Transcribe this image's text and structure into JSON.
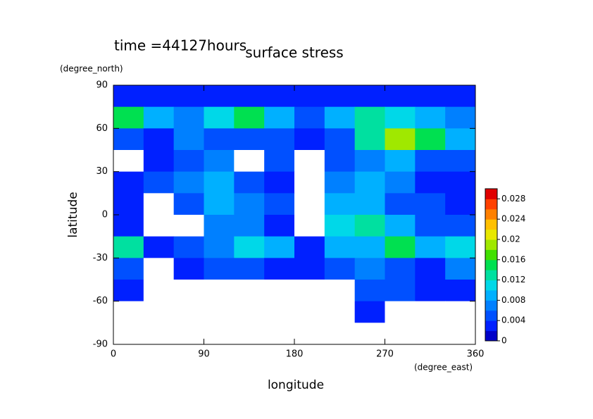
{
  "chart_data": {
    "type": "heatmap",
    "title": "surface stress",
    "subtitle": "time =44127hours",
    "x_label": "longitude",
    "y_label": "latitude",
    "x_unit": "(degree_east)",
    "y_unit": "(degree_north)",
    "xlim": [
      0,
      360
    ],
    "ylim": [
      -90,
      90
    ],
    "xticks": [
      0,
      90,
      180,
      270,
      360
    ],
    "yticks": [
      -90,
      -60,
      -30,
      0,
      30,
      60,
      90
    ],
    "x": [
      15,
      45,
      75,
      105,
      135,
      165,
      195,
      225,
      255,
      285,
      315,
      345
    ],
    "y": [
      82.5,
      67.5,
      52.5,
      37.5,
      22.5,
      7.5,
      -7.5,
      -22.5,
      -37.5,
      -52.5,
      -67.5,
      -82.5
    ],
    "z": [
      [
        0.002,
        0.002,
        0.002,
        0.002,
        0.002,
        0.002,
        0.002,
        0.003,
        0.003,
        0.003,
        0.003,
        0.003
      ],
      [
        0.014,
        0.008,
        0.006,
        0.01,
        0.014,
        0.008,
        0.005,
        0.008,
        0.012,
        0.01,
        0.008,
        0.006
      ],
      [
        0.004,
        0.003,
        0.006,
        0.005,
        0.004,
        0.004,
        0.003,
        0.005,
        0.012,
        0.018,
        0.014,
        0.008
      ],
      [
        0,
        0.003,
        0.004,
        0.006,
        0,
        0.004,
        0,
        0.004,
        0.006,
        0.008,
        0.004,
        0.004
      ],
      [
        0.003,
        0.004,
        0.006,
        0.008,
        0.005,
        0.003,
        0,
        0.006,
        0.008,
        0.006,
        0.003,
        0.003
      ],
      [
        0.003,
        0,
        0.004,
        0.008,
        0.006,
        0.004,
        0,
        0.008,
        0.008,
        0.005,
        0.004,
        0.003
      ],
      [
        0.003,
        0,
        0,
        0.006,
        0.006,
        0.003,
        0,
        0.01,
        0.012,
        0.008,
        0.005,
        0.004
      ],
      [
        0.012,
        0.003,
        0.004,
        0.006,
        0.01,
        0.008,
        0.003,
        0.008,
        0.008,
        0.014,
        0.008,
        0.01
      ],
      [
        0.004,
        0,
        0.003,
        0.004,
        0.004,
        0.003,
        0.003,
        0.005,
        0.006,
        0.004,
        0.003,
        0.006
      ],
      [
        0.003,
        0,
        0,
        0,
        0,
        0,
        0,
        0,
        0.004,
        0.004,
        0.003,
        0.003
      ],
      [
        0,
        0,
        0,
        0,
        0,
        0,
        0,
        0,
        0.003,
        0,
        0,
        0
      ],
      [
        0,
        0,
        0,
        0,
        0,
        0,
        0,
        0,
        0,
        0,
        0,
        0
      ]
    ],
    "clim": [
      0,
      0.03
    ],
    "cticks": [
      0,
      0.004,
      0.008,
      0.012,
      0.016,
      0.02,
      0.024,
      0.028
    ],
    "colors": [
      "#0000c8",
      "#0020ff",
      "#0050ff",
      "#0080ff",
      "#00b0ff",
      "#00d8e8",
      "#00e0a0",
      "#00e050",
      "#40e000",
      "#a0e800",
      "#e8e800",
      "#ffc000",
      "#ff8000",
      "#ff4000",
      "#e00000"
    ],
    "zero_color": "#ffffff"
  }
}
